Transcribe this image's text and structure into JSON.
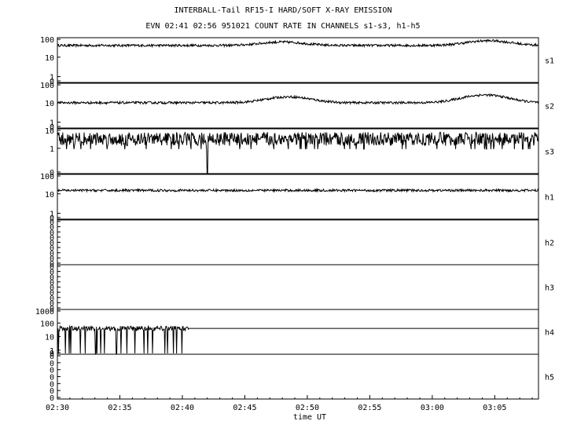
{
  "header": {
    "title": "INTERBALL-Tail RF15-I HARD/SOFT X-RAY EMISSION",
    "subtitle": "EVN 02:41 02:56 951021  COUNT RATE IN CHANNELS s1-s3, h1-h5"
  },
  "chart_data": {
    "type": "line",
    "xlabel": "time UT",
    "x_ticks": [
      "02:30",
      "02:35",
      "02:40",
      "02:45",
      "02:50",
      "02:55",
      "03:00",
      "03:05"
    ],
    "x_range_minutes": [
      0,
      38.5
    ],
    "y_scale": "log",
    "grid": false,
    "panels": [
      {
        "name": "s1",
        "y_ticks": [
          "100",
          "10",
          "1",
          "0"
        ],
        "baseline": 40,
        "range": [
          0.5,
          100
        ],
        "features": [
          {
            "t": 18,
            "peak": 60
          },
          {
            "t": 34.5,
            "peak": 70
          }
        ]
      },
      {
        "name": "s2",
        "y_ticks": [
          "100",
          "10",
          "1",
          "0"
        ],
        "baseline": 10,
        "range": [
          0.5,
          100
        ],
        "features": [
          {
            "t": 18.5,
            "peak": 20
          },
          {
            "t": 34.2,
            "peak": 25
          }
        ]
      },
      {
        "name": "s3",
        "y_ticks": [
          "10",
          "1",
          "0"
        ],
        "baseline": 3,
        "range": [
          0.05,
          10
        ],
        "spike_down": {
          "t": 12,
          "value": 0
        }
      },
      {
        "name": "h1",
        "y_ticks": [
          "100",
          "10",
          "1",
          "0"
        ],
        "baseline": 15,
        "range": [
          0.5,
          100
        ]
      },
      {
        "name": "h2",
        "y_ticks": [
          "0",
          "0",
          "0",
          "0",
          "0",
          "0",
          "0",
          "0",
          "0"
        ],
        "empty": true
      },
      {
        "name": "h3",
        "y_ticks": [
          "0",
          "0",
          "0",
          "0",
          "0",
          "0",
          "0",
          "0",
          "0"
        ],
        "empty": true
      },
      {
        "name": "h4",
        "y_ticks": [
          "1000",
          "100",
          "10",
          "1",
          "0"
        ],
        "baseline": 40,
        "range": [
          0.5,
          1000
        ],
        "data_end_minute": 10.5,
        "flat_level_after": 40
      },
      {
        "name": "h5",
        "y_ticks": [
          "0",
          "0",
          "0",
          "0",
          "0",
          "0",
          "0"
        ],
        "empty": true
      }
    ]
  }
}
